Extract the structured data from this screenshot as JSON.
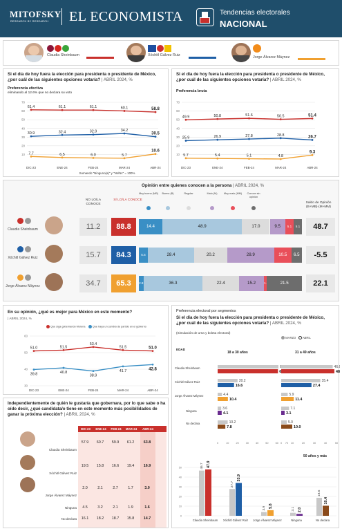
{
  "header": {
    "brand": "MITOFSKY",
    "brand_sub": "RESEARCH BY RESEARCH",
    "publication": "EL ECONOMISTA",
    "section_line1": "Tendencias electorales",
    "section_line2": "NACIONAL"
  },
  "candidates": {
    "sheinbaum": {
      "name": "Claudia Sheinbaum",
      "color": "#c9302c"
    },
    "galvez": {
      "name": "Xóchitl Gálvez Ruiz",
      "color": "#1f5fa6"
    },
    "maynez": {
      "name": "Jorge Álvarez Máynez",
      "color": "#f0a030"
    }
  },
  "question": "Si el día de hoy fuera la elección para presidenta o presidente de México, ¿por cuál de las siguientes opciones votaría?",
  "date_tag": "ABRIL 2024, %",
  "effective": {
    "label": "Preferencia efectiva",
    "note": "eliminando al 12.6% que no declara su voto",
    "footnote": "Sumando \"Ninguno(a)\" y \"Ns/Nc\" = 100%",
    "chart_data": {
      "type": "line",
      "x": [
        "DIC-23",
        "ENE-24",
        "FEB-24",
        "MAR-24",
        "ABR-24"
      ],
      "yticks": [
        10,
        20,
        30,
        40,
        50,
        60,
        70
      ],
      "ylim": [
        0,
        70
      ],
      "series": [
        {
          "name": "Claudia Sheinbaum",
          "color": "#c9302c",
          "values": [
            61.4,
            61.1,
            61.1,
            60.1,
            58.8
          ]
        },
        {
          "name": "Xóchitl Gálvez Ruiz",
          "color": "#1f5fa6",
          "values": [
            30.9,
            32.4,
            32.9,
            34.2,
            30.5
          ]
        },
        {
          "name": "Jorge Álvarez Máynez",
          "color": "#f0a030",
          "values": [
            7.7,
            6.5,
            6.0,
            5.7,
            10.6
          ]
        }
      ]
    }
  },
  "gross": {
    "label": "Preferencia bruta",
    "chart_data": {
      "type": "line",
      "x": [
        "DIC-23",
        "ENE-24",
        "FEB-24",
        "MAR-24",
        "ABR-24"
      ],
      "yticks": [
        10,
        20,
        30,
        40,
        50,
        60,
        70
      ],
      "ylim": [
        0,
        70
      ],
      "series": [
        {
          "name": "Claudia Sheinbaum",
          "color": "#c9302c",
          "values": [
            49.9,
            50.8,
            51.6,
            50.5,
            51.4
          ]
        },
        {
          "name": "Xóchitl Gálvez Ruiz",
          "color": "#1f5fa6",
          "values": [
            25.9,
            26.9,
            27.8,
            28.8,
            26.7
          ]
        },
        {
          "name": "Jorge Álvarez Máynez",
          "color": "#f0a030",
          "values": [
            5.7,
            5.4,
            5.1,
            4.8,
            9.3
          ]
        }
      ]
    }
  },
  "opinion": {
    "title": "Opinión entre quienes conocen a la persona",
    "date_tag": "ABRIL 2024, %",
    "col_no": "NO LO/LA CONOCE",
    "col_si": "SÍ LO/LA CONOCE",
    "saldo_label": "Saldo de Opinión (B+MB)-(M+MM)",
    "cats": [
      "Muy bueno (MB)",
      "Bueno (B)",
      "Regular",
      "Malo (M)",
      "Muy malo (MM)",
      "Conoce sin opinión"
    ],
    "cat_colors": [
      "#3a8fc5",
      "#a8c8de",
      "#dcdcdc",
      "#b59ac9",
      "#e94f5a",
      "#6d6d6d"
    ],
    "chart_data": {
      "type": "bar",
      "rows": [
        {
          "name": "Claudia Sheinbaum",
          "no_conoce": "11.2",
          "si_conoce": "88.8",
          "color": "#c9302c",
          "segments": [
            14.4,
            48.9,
            17.0,
            9.5,
            5.1,
            5.1
          ],
          "saldo": "48.7"
        },
        {
          "name": "Xóchitl Gálvez Ruiz",
          "no_conoce": "15.7",
          "si_conoce": "84.3",
          "color": "#1f5fa6",
          "segments": [
            5.5,
            28.4,
            20.2,
            28.9,
            10.5,
            6.5
          ],
          "saldo": "-5.5"
        },
        {
          "name": "Jorge Álvarez Máynez",
          "no_conoce": "34.7",
          "si_conoce": "65.3",
          "color": "#f0a030",
          "segments": [
            2.8,
            36.3,
            22.4,
            15.2,
            1.8,
            21.5
          ],
          "saldo": "22.1"
        }
      ]
    }
  },
  "better": {
    "question": "En su opinión, ¿qué es mejor para México en este momento?",
    "date_tag": "ABRIL 2024, %",
    "chart_data": {
      "type": "line",
      "x": [
        "DIC-23",
        "ENE-24",
        "FEB-24",
        "MAR-24",
        "ABR-24"
      ],
      "yticks": [
        30,
        40,
        50,
        60
      ],
      "ylim": [
        30,
        60
      ],
      "series": [
        {
          "name": "Que siga gobernando Morena",
          "color": "#c9302c",
          "values": [
            51.0,
            51.5,
            53.4,
            51.5,
            51.0
          ]
        },
        {
          "name": "Que haya un cambio de partido en el gobierno",
          "color": "#3a8fc5",
          "values": [
            39.8,
            40.8,
            38.9,
            41.7,
            42.8
          ]
        }
      ]
    }
  },
  "winner": {
    "question": "Independientemente de quién le gustaría que gobernara, por lo que sabe o ha oído decir, ¿qué candidata/o tiene en este momento más posibilidades de ganar la próxima elección?",
    "date_tag": "ABRIL 2024, %",
    "chart_data": {
      "type": "table",
      "columns": [
        "DIC-23",
        "ENE-24",
        "FEB-24",
        "MAR-24",
        "ABR-24"
      ],
      "rows": [
        {
          "name": "Claudia Sheinbaum",
          "values": [
            "57.9",
            "60.7",
            "59.9",
            "61.2",
            "63.8"
          ]
        },
        {
          "name": "Xóchitl Gálvez Ruiz",
          "values": [
            "19.5",
            "15.8",
            "16.6",
            "19.4",
            "16.9"
          ]
        },
        {
          "name": "Jorge Álvarez Máynez",
          "values": [
            "2.0",
            "2.1",
            "2.7",
            "1.7",
            "3.0"
          ]
        },
        {
          "name": "Ninguna",
          "values": [
            "4.5",
            "3.2",
            "2.1",
            "1.9",
            "1.6"
          ]
        },
        {
          "name": "No declara",
          "values": [
            "16.1",
            "18.2",
            "18.7",
            "15.8",
            "14.7"
          ]
        }
      ]
    }
  },
  "segments": {
    "title": "Preferencia electoral por segmentos",
    "note": "(Simulación de urna y boleta electoral)",
    "legend": [
      "MARZO",
      "ABRIL"
    ],
    "edad_label": "EDAD",
    "g1_label": "18 a 30 años",
    "g2_label": "31 a 49 años",
    "g3_label": "50 años y más",
    "chart_data": [
      {
        "type": "bar",
        "group": "18 a 30 años",
        "categories": [
          "Claudia Sheinbaum",
          "Xóchitl Gálvez Ruiz",
          "Jorge Álvarez Máynez",
          "Ninguna",
          "No declara"
        ],
        "series": [
          {
            "name": "MARZO",
            "values": [
              61.6,
              20.2,
              4.4,
              3.6,
              10.2
            ]
          },
          {
            "name": "ABRIL",
            "values": [
              61.1,
              16.6,
              10.4,
              4.1,
              7.8
            ]
          }
        ],
        "xticks": [
          0,
          10,
          20,
          30,
          40,
          50,
          60,
          70
        ],
        "xlim": [
          0,
          70
        ]
      },
      {
        "type": "bar",
        "group": "31 a 49 años",
        "categories": [
          "Claudia Sheinbaum",
          "Xóchitl Gálvez Ruiz",
          "Jorge Álvarez Máynez",
          "Ninguna",
          "No declara"
        ],
        "series": [
          {
            "name": "MARZO",
            "values": [
              46.6,
              35.4,
              5.9,
              7.1,
              5.0
            ]
          },
          {
            "name": "ABRIL",
            "values": [
              48.1,
              27.4,
              11.4,
              3.1,
              10.0
            ]
          }
        ],
        "xticks": [
          0,
          10,
          20,
          30,
          40,
          50
        ],
        "xlim": [
          0,
          50
        ]
      },
      {
        "type": "bar",
        "group": "50 años y más",
        "categories": [
          "Claudia Sheinbaum",
          "Xóchitl Gálvez Ruiz",
          "Jorge Álvarez Máynez",
          "Ninguna",
          "No declara"
        ],
        "series": [
          {
            "name": "MARZO",
            "values": [
              46.7,
              27.7,
              3.9,
              3.1,
              18.6
            ]
          },
          {
            "name": "ABRIL",
            "values": [
              47.9,
              33.9,
              5.8,
              2.0,
              10.4
            ]
          }
        ],
        "yticks": [
          0,
          10,
          20,
          30,
          40,
          50
        ],
        "ylim": [
          0,
          50
        ]
      }
    ]
  }
}
